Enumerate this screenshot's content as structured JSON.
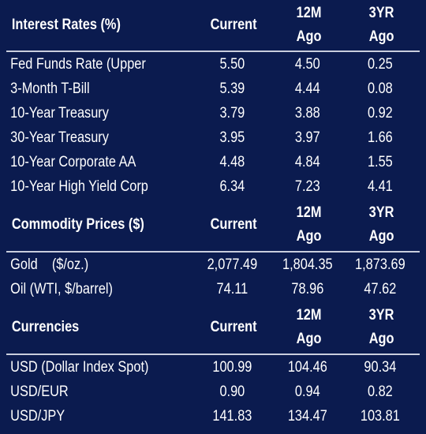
{
  "interest_rates": {
    "title": "Interest Rates (%)",
    "col_current": "Current",
    "col_12m_top": "12M",
    "col_12m_bottom": "Ago",
    "col_3yr_top": "3YR",
    "col_3yr_bottom": "Ago",
    "rows": [
      {
        "name": "Fed Funds Rate (Upper",
        "current": "5.50",
        "m12": "4.50",
        "yr3": "0.25"
      },
      {
        "name": "3-Month T-Bill",
        "current": "5.39",
        "m12": "4.44",
        "yr3": "0.08"
      },
      {
        "name": "10-Year Treasury",
        "current": "3.79",
        "m12": "3.88",
        "yr3": "0.92"
      },
      {
        "name": "30-Year Treasury",
        "current": "3.95",
        "m12": "3.97",
        "yr3": "1.66"
      },
      {
        "name": "10-Year Corporate AA",
        "current": "4.48",
        "m12": "4.84",
        "yr3": "1.55"
      },
      {
        "name": "10-Year High Yield Corp",
        "current": "6.34",
        "m12": "7.23",
        "yr3": "4.41"
      }
    ]
  },
  "commodities": {
    "title": "Commodity Prices ($)",
    "col_current": "Current",
    "col_12m_top": "12M",
    "col_12m_bottom": "Ago",
    "col_3yr_top": "3YR",
    "col_3yr_bottom": "Ago",
    "rows": [
      {
        "name": "Gold    ($/oz.)",
        "current": "2,077.49",
        "m12": "1,804.35",
        "yr3": "1,873.69"
      },
      {
        "name": "Oil (WTI, $/barrel)",
        "current": "74.11",
        "m12": "78.96",
        "yr3": "47.62"
      }
    ]
  },
  "currencies": {
    "title": "Currencies",
    "col_current": "Current",
    "col_12m_top": "12M",
    "col_12m_bottom": "Ago",
    "col_3yr_top": "3YR",
    "col_3yr_bottom": "Ago",
    "rows": [
      {
        "name": "USD (Dollar Index Spot)",
        "current": "100.99",
        "m12": "104.46",
        "yr3": "90.34"
      },
      {
        "name": "USD/EUR",
        "current": "0.90",
        "m12": "0.94",
        "yr3": "0.82"
      },
      {
        "name": "USD/JPY",
        "current": "141.83",
        "m12": "134.47",
        "yr3": "103.81"
      }
    ]
  }
}
